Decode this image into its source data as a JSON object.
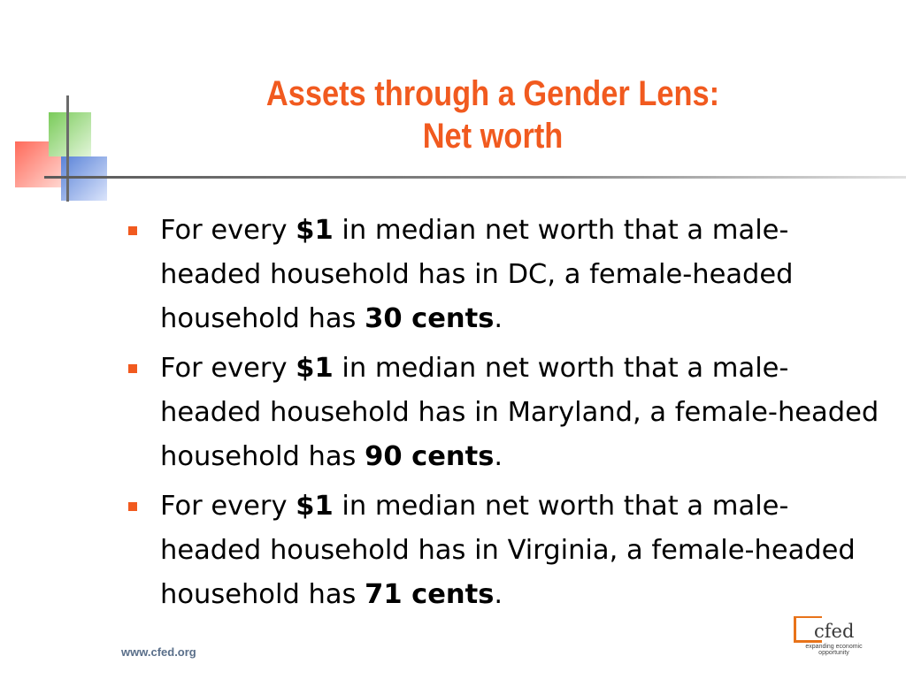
{
  "slide": {
    "title_line1": "Assets through a Gender Lens:",
    "title_line2": "Net worth",
    "bullets": [
      {
        "before": "For every ",
        "amount": "$1",
        "middle": " in median net worth that a male-headed household has in DC, a female-headed household has ",
        "result": "30 cents",
        "end": "."
      },
      {
        "before": "For every ",
        "amount": "$1",
        "middle": " in median net worth that a male-headed household has in Maryland, a female-headed household has ",
        "result": "90 cents",
        "end": "."
      },
      {
        "before": "For every ",
        "amount": "$1",
        "middle": " in median net worth that a male-headed household has in Virginia, a female-headed household has ",
        "result": "71 cents",
        "end": "."
      }
    ]
  },
  "footer": {
    "url": "www.cfed.org",
    "logo_text": "cfed",
    "logo_tagline": "expanding economic opportunity"
  },
  "colors": {
    "title": "#f15a1f",
    "bullet_marker": "#f15a1f",
    "logo_accent": "#e8731a"
  }
}
